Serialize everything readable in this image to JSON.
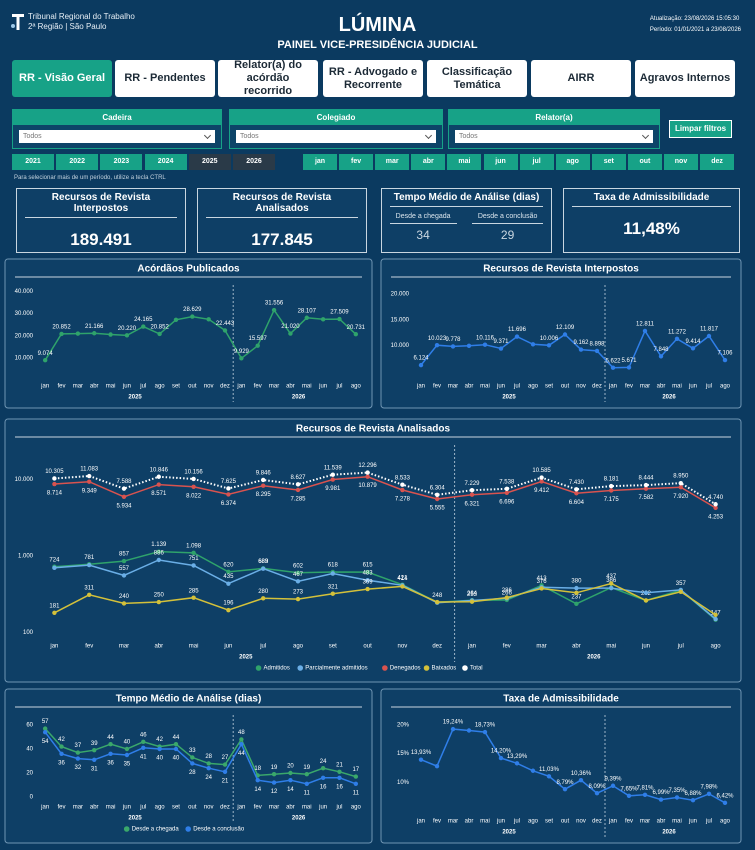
{
  "header": {
    "org_name": "Tribunal Regional do Trabalho",
    "org_sub": "2ª Região | São Paulo",
    "title": "LÚMINA",
    "subtitle": "PAINEL VICE-PRESIDÊNCIA JUDICIAL",
    "updated": "Atualização: 23/08/2026 15:05:30",
    "period": "Período: 01/01/2021 a 23/08/2026"
  },
  "nav": [
    {
      "label": "RR - Visão Geral",
      "selected": true
    },
    {
      "label": "RR - Pendentes",
      "selected": false
    },
    {
      "label": "Relator(a) do acórdão recorrido",
      "selected": false
    },
    {
      "label": "RR - Advogado e Recorrente",
      "selected": false
    },
    {
      "label": "Classificação Temática",
      "selected": false
    },
    {
      "label": "AIRR",
      "selected": false
    },
    {
      "label": "Agravos Internos",
      "selected": false
    }
  ],
  "filters": [
    {
      "label": "Cadeira",
      "value": "Todos"
    },
    {
      "label": "Colegiado",
      "value": "Todos"
    },
    {
      "label": "Relator(a)",
      "value": "Todos"
    }
  ],
  "clear_button": "Limpar filtros",
  "years": [
    {
      "label": "2021",
      "selected": false
    },
    {
      "label": "2022",
      "selected": false
    },
    {
      "label": "2023",
      "selected": false
    },
    {
      "label": "2024",
      "selected": false
    },
    {
      "label": "2025",
      "selected": true
    },
    {
      "label": "2026",
      "selected": true
    }
  ],
  "months": [
    "jan",
    "fev",
    "mar",
    "abr",
    "mai",
    "jun",
    "jul",
    "ago",
    "set",
    "out",
    "nov",
    "dez"
  ],
  "hint": "Para selecionar mais de um período, utilize a tecla CTRL",
  "kpis": [
    {
      "title": "Recursos de Revista Interpostos",
      "value": "189.491"
    },
    {
      "title": "Recursos de Revista Analisados",
      "value": "177.845"
    },
    {
      "title": "Taxa de Admissibilidade",
      "value": "11,48%"
    }
  ],
  "kpi_time": {
    "title": "Tempo Médio de Análise (dias)",
    "items": [
      {
        "label": "Desde a chegada",
        "value": "34"
      },
      {
        "label": "Desde a conclusão",
        "value": "29"
      }
    ]
  },
  "chart_data": [
    {
      "type": "line",
      "title": "Acórdãos Publicados",
      "categories": [
        "jan",
        "fev",
        "mar",
        "abr",
        "mai",
        "jun",
        "jul",
        "ago",
        "set",
        "out",
        "nov",
        "dez",
        "jan",
        "fev",
        "mar",
        "abr",
        "mai",
        "jun",
        "jul",
        "ago"
      ],
      "groups": [
        {
          "label": "2025",
          "count": 12
        },
        {
          "label": "2026",
          "count": 8
        }
      ],
      "ylim": [
        2000,
        41000
      ],
      "yticks": [
        {
          "value": 10000,
          "label": "10.000"
        },
        {
          "value": 20000,
          "label": "20.000"
        },
        {
          "value": 30000,
          "label": "30.000"
        },
        {
          "value": 40000,
          "label": "40.000"
        }
      ],
      "series": [
        {
          "name": "Acórdãos",
          "color": "#2fa36b",
          "values": [
            9074,
            20852,
            21000,
            21166,
            20600,
            20220,
            24165,
            20852,
            27200,
            28629,
            27400,
            22443,
            9929,
            15597,
            31556,
            21020,
            28107,
            27400,
            27509,
            20731
          ],
          "value_labels": [
            "9.074",
            "20.852",
            null,
            "21.166",
            null,
            "20.220",
            "24.165",
            "20.852",
            null,
            "28.629",
            null,
            "22.443",
            "9.929",
            "15.597",
            "31.556",
            "21.020",
            "28.107",
            null,
            "27.509",
            "20.731"
          ]
        }
      ]
    },
    {
      "type": "line",
      "title": "Recursos de Revista Interpostos",
      "categories": [
        "jan",
        "fev",
        "mar",
        "abr",
        "mai",
        "jun",
        "jul",
        "ago",
        "set",
        "out",
        "nov",
        "dez",
        "jan",
        "fev",
        "mar",
        "abr",
        "mai",
        "jun",
        "jul",
        "ago"
      ],
      "groups": [
        {
          "label": "2025",
          "count": 12
        },
        {
          "label": "2026",
          "count": 8
        }
      ],
      "ylim": [
        4000,
        21000
      ],
      "yticks": [
        {
          "value": 10000,
          "label": "10.000"
        },
        {
          "value": 15000,
          "label": "15.000"
        },
        {
          "value": 20000,
          "label": "20.000"
        }
      ],
      "series": [
        {
          "name": "Interpostos",
          "color": "#2f7ee8",
          "values": [
            6124,
            10023,
            9778,
            9900,
            10116,
            9371,
            11696,
            10200,
            10006,
            12109,
            9162,
            8898,
            5622,
            5671,
            12811,
            7848,
            11272,
            9414,
            11817,
            7106
          ],
          "value_labels": [
            "6.124",
            "10.023",
            "9.778",
            null,
            "10.116",
            "9.371",
            "11.696",
            null,
            "10.006",
            "12.109",
            "9.162",
            "8.898",
            "5.622",
            "5.671",
            "12.811",
            "7.848",
            "11.272",
            "9.414",
            "11.817",
            "7.106"
          ]
        }
      ]
    },
    {
      "type": "line",
      "title": "Recursos de Revista Analisados",
      "log_scale": true,
      "legend": "bottom",
      "categories": [
        "jan",
        "fev",
        "mar",
        "abr",
        "mai",
        "jun",
        "jul",
        "ago",
        "set",
        "out",
        "nov",
        "dez",
        "jan",
        "fev",
        "mar",
        "abr",
        "mai",
        "jun",
        "jul",
        "ago"
      ],
      "groups": [
        {
          "label": "2025",
          "count": 12
        },
        {
          "label": "2026",
          "count": 8
        }
      ],
      "ylim": [
        90,
        25000
      ],
      "yticks": [
        100,
        {
          "value": 1000,
          "label": "1.000"
        },
        {
          "value": 10000,
          "label": "10.000"
        }
      ],
      "series": [
        {
          "name": "Admitidos",
          "color": "#2fa36b",
          "values": [
            724,
            781,
            857,
            1139,
            1098,
            620,
            689,
            602,
            618,
            615,
            421,
            248,
            264,
            266,
            413,
            237,
            386,
            262,
            357,
            147
          ],
          "value_labels": [
            "724",
            "781",
            "857",
            "1.139",
            "1.098",
            "620",
            "689",
            "602",
            "618",
            "615",
            "421",
            "248",
            "264",
            "266",
            "413",
            "237",
            "386",
            "262",
            "357",
            "147"
          ]
        },
        {
          "name": "Parcialmente admitidos",
          "color": "#6aaee6",
          "values": [
            700,
            760,
            557,
            886,
            751,
            435,
            683,
            467,
            590,
            483,
            414,
            245,
            262,
            280,
            390,
            380,
            380,
            330,
            360,
            150
          ],
          "value_labels": [
            null,
            null,
            "557",
            "886",
            "751",
            "435",
            "683",
            "467",
            null,
            "483",
            "414",
            null,
            null,
            null,
            null,
            "380",
            null,
            null,
            null,
            null
          ]
        },
        {
          "name": "Denegados",
          "color": "#d9534f",
          "values": [
            8714,
            9349,
            5934,
            8571,
            8022,
            6374,
            8295,
            7285,
            9981,
            10879,
            7278,
            5555,
            6321,
            6696,
            9412,
            6604,
            7175,
            7582,
            7920,
            4253
          ],
          "value_labels": [
            "8.714",
            "9.349",
            "5.934",
            "8.571",
            "8.022",
            "6.374",
            "8.295",
            "7.285",
            "9.981",
            "10.879",
            "7.278",
            "5.555",
            "6.321",
            "6.696",
            "9.412",
            "6.604",
            "7.175",
            "7.582",
            "7.920",
            "4.253"
          ]
        },
        {
          "name": "Baixados",
          "color": "#d4c13a",
          "values": [
            181,
            311,
            240,
            250,
            285,
            196,
            280,
            273,
            321,
            369,
            400,
            250,
            253,
            286,
            376,
            330,
            437,
            262,
            340,
            170
          ],
          "value_labels": [
            "181",
            "311",
            "240",
            "250",
            "285",
            "196",
            "280",
            "273",
            "321",
            "369",
            null,
            null,
            "253",
            "286",
            "376",
            null,
            "437",
            null,
            null,
            null
          ]
        },
        {
          "name": "Total",
          "color": "#ffffff",
          "line_style": "dotted",
          "values": [
            10305,
            11083,
            7588,
            10846,
            10156,
            7625,
            9846,
            8627,
            11539,
            12296,
            8533,
            6304,
            7229,
            7538,
            10585,
            7430,
            8181,
            8444,
            8950,
            4740
          ],
          "value_labels": [
            "10.305",
            "11.083",
            "7.588",
            "10.846",
            "10.156",
            "7.625",
            "9.846",
            "8.627",
            "11.539",
            "12.296",
            "8.533",
            "6.304",
            "7.229",
            "7.538",
            "10.585",
            "7.430",
            "8.181",
            "8.444",
            "8.950",
            "4.740"
          ]
        }
      ]
    },
    {
      "type": "line",
      "title": "Tempo Médio de Análise (dias)",
      "legend": "bottom",
      "data_labels": true,
      "categories": [
        "jan",
        "fev",
        "mar",
        "abr",
        "mai",
        "jun",
        "jul",
        "ago",
        "set",
        "out",
        "nov",
        "dez",
        "jan",
        "fev",
        "mar",
        "abr",
        "mai",
        "jun",
        "jul",
        "ago"
      ],
      "groups": [
        {
          "label": "2025",
          "count": 12
        },
        {
          "label": "2026",
          "count": 8
        }
      ],
      "ylim": [
        0,
        65
      ],
      "yticks": [
        0,
        20,
        40,
        60
      ],
      "series": [
        {
          "name": "Desde a chegada",
          "color": "#3aa86b",
          "values": [
            57,
            42,
            37,
            39,
            44,
            40,
            46,
            42,
            44,
            33,
            28,
            27,
            48,
            18,
            19,
            20,
            19,
            24,
            21,
            17
          ]
        },
        {
          "name": "Desde a conclusão",
          "color": "#2f7ee8",
          "values": [
            54,
            36,
            32,
            31,
            36,
            35,
            41,
            40,
            40,
            28,
            24,
            21,
            44,
            14,
            12,
            14,
            11,
            16,
            16,
            11
          ]
        }
      ]
    },
    {
      "type": "line",
      "title": "Taxa de Admissibilidade",
      "categories": [
        "jan",
        "fev",
        "mar",
        "abr",
        "mai",
        "jun",
        "jul",
        "ago",
        "set",
        "out",
        "nov",
        "dez",
        "jan",
        "fev",
        "mar",
        "abr",
        "mai",
        "jun",
        "jul",
        "ago"
      ],
      "groups": [
        {
          "label": "2025",
          "count": 12
        },
        {
          "label": "2026",
          "count": 8
        }
      ],
      "ylim": [
        5,
        21
      ],
      "yticks": [
        {
          "value": 10,
          "label": "10%"
        },
        {
          "value": 15,
          "label": "15%"
        },
        {
          "value": 20,
          "label": "20%"
        }
      ],
      "series": [
        {
          "name": "Taxa",
          "color": "#2f7ee8",
          "values": [
            13.93,
            12.8,
            19.24,
            19.0,
            18.73,
            14.2,
            13.29,
            12.0,
            11.03,
            8.79,
            10.36,
            8.09,
            9.39,
            7.65,
            7.81,
            6.99,
            7.35,
            6.88,
            7.98,
            6.42
          ],
          "value_labels": [
            "13,93%",
            null,
            "19,24%",
            null,
            "18,73%",
            "14,20%",
            "13,29%",
            null,
            "11,03%",
            "8,79%",
            "10,36%",
            "8,09%",
            "9,39%",
            "7,65%",
            "7,81%",
            "6,99%",
            "7,35%",
            "6,88%",
            "7,98%",
            "6,42%"
          ]
        }
      ]
    }
  ]
}
